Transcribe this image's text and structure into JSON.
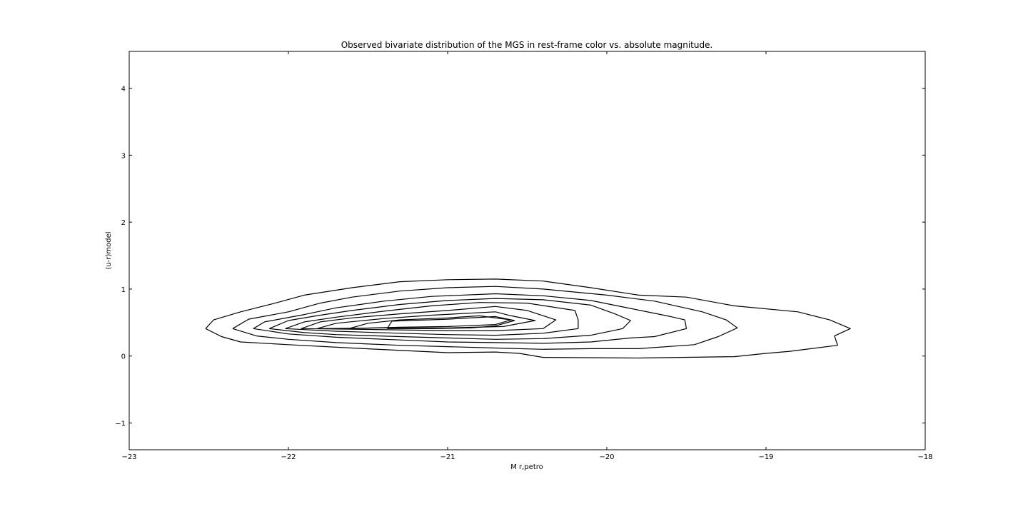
{
  "chart_data": {
    "type": "contour",
    "title": "Observed bivariate distribution of the MGS in rest-frame color vs. absolute magnitude.",
    "xlabel": "M r,petro",
    "ylabel": "(u-r)model",
    "xlim": [
      -23,
      -18
    ],
    "ylim": [
      -1.4,
      4.55
    ],
    "xticks": [
      -23,
      -22,
      -21,
      -20,
      -19,
      -18
    ],
    "xtick_labels": [
      "−23",
      "−22",
      "−21",
      "−20",
      "−19",
      "−18"
    ],
    "yticks": [
      -1,
      0,
      1,
      2,
      3,
      4
    ],
    "ytick_labels": [
      "−1",
      "0",
      "1",
      "2",
      "3",
      "4"
    ],
    "grid": false,
    "legend": "none",
    "line_color": "#000000",
    "contours": [
      {
        "level": 1,
        "points": [
          [
            -22.52,
            0.41
          ],
          [
            -22.47,
            0.54
          ],
          [
            -22.3,
            0.66
          ],
          [
            -22.1,
            0.78
          ],
          [
            -21.9,
            0.91
          ],
          [
            -21.6,
            1.02
          ],
          [
            -21.3,
            1.11
          ],
          [
            -21.0,
            1.14
          ],
          [
            -20.7,
            1.15
          ],
          [
            -20.4,
            1.12
          ],
          [
            -20.1,
            1.02
          ],
          [
            -19.8,
            0.91
          ],
          [
            -19.5,
            0.88
          ],
          [
            -19.2,
            0.75
          ],
          [
            -18.8,
            0.66
          ],
          [
            -18.6,
            0.54
          ],
          [
            -18.47,
            0.41
          ],
          [
            -18.57,
            0.3
          ],
          [
            -18.55,
            0.16
          ],
          [
            -18.85,
            0.07
          ],
          [
            -19.0,
            0.04
          ],
          [
            -19.2,
            -0.01
          ],
          [
            -19.8,
            -0.03
          ],
          [
            -20.4,
            -0.02
          ],
          [
            -20.55,
            0.04
          ],
          [
            -20.7,
            0.06
          ],
          [
            -21.0,
            0.05
          ],
          [
            -21.6,
            0.12
          ],
          [
            -22.0,
            0.17
          ],
          [
            -22.3,
            0.21
          ],
          [
            -22.42,
            0.29
          ],
          [
            -22.52,
            0.41
          ]
        ]
      },
      {
        "level": 2,
        "points": [
          [
            -22.35,
            0.41
          ],
          [
            -22.25,
            0.55
          ],
          [
            -22.0,
            0.66
          ],
          [
            -21.8,
            0.79
          ],
          [
            -21.6,
            0.88
          ],
          [
            -21.3,
            0.97
          ],
          [
            -21.0,
            1.02
          ],
          [
            -20.7,
            1.04
          ],
          [
            -20.4,
            1.0
          ],
          [
            -20.0,
            0.91
          ],
          [
            -19.7,
            0.82
          ],
          [
            -19.4,
            0.66
          ],
          [
            -19.25,
            0.54
          ],
          [
            -19.18,
            0.42
          ],
          [
            -19.3,
            0.29
          ],
          [
            -19.45,
            0.17
          ],
          [
            -19.8,
            0.11
          ],
          [
            -20.1,
            0.11
          ],
          [
            -20.4,
            0.1
          ],
          [
            -20.7,
            0.12
          ],
          [
            -21.0,
            0.14
          ],
          [
            -21.3,
            0.16
          ],
          [
            -21.7,
            0.2
          ],
          [
            -22.0,
            0.25
          ],
          [
            -22.2,
            0.3
          ],
          [
            -22.35,
            0.41
          ]
        ]
      },
      {
        "level": 3,
        "points": [
          [
            -22.22,
            0.41
          ],
          [
            -22.15,
            0.51
          ],
          [
            -21.9,
            0.62
          ],
          [
            -21.7,
            0.72
          ],
          [
            -21.4,
            0.82
          ],
          [
            -21.1,
            0.89
          ],
          [
            -20.7,
            0.93
          ],
          [
            -20.4,
            0.9
          ],
          [
            -20.1,
            0.83
          ],
          [
            -19.85,
            0.71
          ],
          [
            -19.6,
            0.59
          ],
          [
            -19.51,
            0.54
          ],
          [
            -19.5,
            0.41
          ],
          [
            -19.7,
            0.29
          ],
          [
            -19.85,
            0.27
          ],
          [
            -20.1,
            0.21
          ],
          [
            -20.4,
            0.19
          ],
          [
            -20.7,
            0.2
          ],
          [
            -21.0,
            0.21
          ],
          [
            -21.3,
            0.24
          ],
          [
            -21.7,
            0.28
          ],
          [
            -22.0,
            0.33
          ],
          [
            -22.22,
            0.41
          ]
        ]
      },
      {
        "level": 4,
        "points": [
          [
            -22.12,
            0.41
          ],
          [
            -22.0,
            0.53
          ],
          [
            -21.8,
            0.61
          ],
          [
            -21.6,
            0.68
          ],
          [
            -21.3,
            0.77
          ],
          [
            -21.0,
            0.83
          ],
          [
            -20.7,
            0.86
          ],
          [
            -20.4,
            0.84
          ],
          [
            -20.1,
            0.76
          ],
          [
            -19.95,
            0.63
          ],
          [
            -19.85,
            0.53
          ],
          [
            -19.9,
            0.41
          ],
          [
            -20.1,
            0.31
          ],
          [
            -20.4,
            0.26
          ],
          [
            -20.7,
            0.25
          ],
          [
            -21.0,
            0.27
          ],
          [
            -21.3,
            0.29
          ],
          [
            -21.7,
            0.32
          ],
          [
            -21.9,
            0.35
          ],
          [
            -22.12,
            0.41
          ]
        ]
      },
      {
        "level": 5,
        "points": [
          [
            -22.02,
            0.41
          ],
          [
            -21.9,
            0.51
          ],
          [
            -21.7,
            0.58
          ],
          [
            -21.4,
            0.67
          ],
          [
            -21.1,
            0.75
          ],
          [
            -20.8,
            0.8
          ],
          [
            -20.5,
            0.79
          ],
          [
            -20.2,
            0.68
          ],
          [
            -20.18,
            0.54
          ],
          [
            -20.18,
            0.41
          ],
          [
            -20.4,
            0.34
          ],
          [
            -20.7,
            0.31
          ],
          [
            -21.0,
            0.32
          ],
          [
            -21.3,
            0.34
          ],
          [
            -21.7,
            0.37
          ],
          [
            -22.02,
            0.41
          ]
        ]
      },
      {
        "level": 6,
        "points": [
          [
            -21.92,
            0.41
          ],
          [
            -21.8,
            0.51
          ],
          [
            -21.6,
            0.57
          ],
          [
            -21.3,
            0.63
          ],
          [
            -21.0,
            0.68
          ],
          [
            -20.7,
            0.74
          ],
          [
            -20.5,
            0.68
          ],
          [
            -20.32,
            0.54
          ],
          [
            -20.4,
            0.41
          ],
          [
            -20.7,
            0.38
          ],
          [
            -21.0,
            0.38
          ],
          [
            -21.3,
            0.39
          ],
          [
            -21.6,
            0.4
          ],
          [
            -21.92,
            0.41
          ]
        ]
      },
      {
        "level": 7,
        "points": [
          [
            -21.82,
            0.41
          ],
          [
            -21.7,
            0.49
          ],
          [
            -21.4,
            0.56
          ],
          [
            -21.1,
            0.61
          ],
          [
            -20.7,
            0.66
          ],
          [
            -20.6,
            0.6
          ],
          [
            -20.45,
            0.53
          ],
          [
            -20.65,
            0.44
          ],
          [
            -21.0,
            0.42
          ],
          [
            -21.4,
            0.42
          ],
          [
            -21.82,
            0.41
          ]
        ]
      },
      {
        "level": 8,
        "points": [
          [
            -21.62,
            0.41
          ],
          [
            -21.5,
            0.49
          ],
          [
            -21.3,
            0.54
          ],
          [
            -21.0,
            0.57
          ],
          [
            -20.8,
            0.6
          ],
          [
            -20.6,
            0.54
          ],
          [
            -20.7,
            0.47
          ],
          [
            -21.0,
            0.44
          ],
          [
            -21.3,
            0.43
          ],
          [
            -21.62,
            0.41
          ]
        ]
      },
      {
        "level": 9,
        "points": [
          [
            -21.38,
            0.41
          ],
          [
            -21.35,
            0.52
          ],
          [
            -21.0,
            0.55
          ],
          [
            -20.7,
            0.59
          ],
          [
            -20.58,
            0.53
          ],
          [
            -20.7,
            0.45
          ],
          [
            -20.85,
            0.42
          ],
          [
            -21.1,
            0.41
          ],
          [
            -21.38,
            0.41
          ]
        ]
      }
    ]
  }
}
